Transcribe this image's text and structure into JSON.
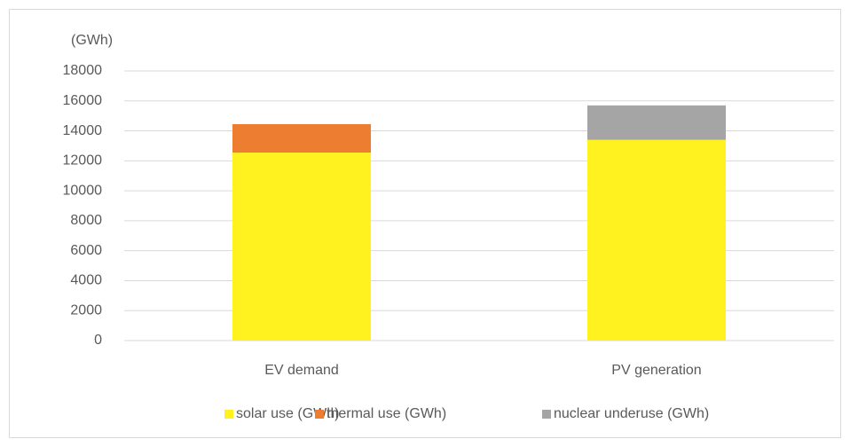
{
  "chart_data": {
    "type": "stacked_bar",
    "y_axis_label": "(GWh)",
    "categories": [
      "EV demand",
      "PV generation"
    ],
    "series": [
      {
        "name": "solar use (GWh)",
        "color": "#fff21f",
        "values": [
          12550,
          13400
        ]
      },
      {
        "name": "thermal use (GWh)",
        "color": "#ed7d31",
        "values": [
          1900,
          null
        ]
      },
      {
        "name": "nuclear underuse (GWh)",
        "color": "#a5a5a5",
        "values": [
          null,
          2300
        ]
      }
    ],
    "ylim": [
      0,
      18000
    ],
    "yticks": [
      0,
      2000,
      4000,
      6000,
      8000,
      10000,
      12000,
      14000,
      16000,
      18000
    ],
    "grid": true,
    "legend": "bottom"
  }
}
